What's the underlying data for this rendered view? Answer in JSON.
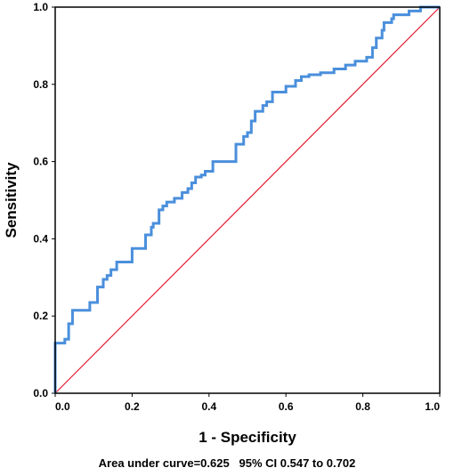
{
  "chart_data": {
    "type": "line",
    "xlabel": "1 - Specificity",
    "ylabel": "Sensitivity",
    "xlim": [
      0.0,
      1.0
    ],
    "ylim": [
      0.0,
      1.0
    ],
    "x_ticks": [
      "0.0",
      "0.2",
      "0.4",
      "0.6",
      "0.8",
      "1.0"
    ],
    "y_ticks": [
      "0.0",
      "0.2",
      "0.4",
      "0.6",
      "0.8",
      "1.0"
    ],
    "grid": false,
    "series": [
      {
        "style": "step",
        "color": "#4a8fdc",
        "x": [
          0.0,
          0.0,
          0.025,
          0.025,
          0.035,
          0.035,
          0.045,
          0.045,
          0.09,
          0.09,
          0.11,
          0.11,
          0.125,
          0.125,
          0.135,
          0.135,
          0.145,
          0.145,
          0.16,
          0.16,
          0.2,
          0.2,
          0.235,
          0.235,
          0.25,
          0.25,
          0.255,
          0.255,
          0.27,
          0.27,
          0.28,
          0.28,
          0.29,
          0.29,
          0.31,
          0.31,
          0.33,
          0.33,
          0.345,
          0.345,
          0.355,
          0.355,
          0.365,
          0.365,
          0.38,
          0.38,
          0.39,
          0.39,
          0.41,
          0.41,
          0.47,
          0.47,
          0.49,
          0.49,
          0.5,
          0.5,
          0.51,
          0.51,
          0.52,
          0.52,
          0.54,
          0.54,
          0.55,
          0.55,
          0.565,
          0.565,
          0.6,
          0.6,
          0.625,
          0.625,
          0.64,
          0.64,
          0.66,
          0.66,
          0.69,
          0.69,
          0.725,
          0.725,
          0.755,
          0.755,
          0.78,
          0.78,
          0.81,
          0.81,
          0.825,
          0.825,
          0.835,
          0.835,
          0.85,
          0.85,
          0.855,
          0.855,
          0.875,
          0.875,
          0.88,
          0.88,
          0.92,
          0.92,
          0.95,
          0.95,
          1.0
        ],
        "y": [
          0.0,
          0.13,
          0.13,
          0.14,
          0.14,
          0.18,
          0.18,
          0.215,
          0.215,
          0.235,
          0.235,
          0.275,
          0.275,
          0.295,
          0.295,
          0.305,
          0.305,
          0.32,
          0.32,
          0.34,
          0.34,
          0.375,
          0.375,
          0.41,
          0.41,
          0.43,
          0.43,
          0.44,
          0.44,
          0.475,
          0.475,
          0.485,
          0.485,
          0.495,
          0.495,
          0.505,
          0.505,
          0.52,
          0.52,
          0.53,
          0.53,
          0.545,
          0.545,
          0.56,
          0.56,
          0.565,
          0.565,
          0.575,
          0.575,
          0.6,
          0.6,
          0.645,
          0.645,
          0.665,
          0.665,
          0.675,
          0.675,
          0.705,
          0.705,
          0.73,
          0.73,
          0.745,
          0.745,
          0.755,
          0.755,
          0.78,
          0.78,
          0.795,
          0.795,
          0.81,
          0.81,
          0.82,
          0.82,
          0.825,
          0.825,
          0.83,
          0.83,
          0.84,
          0.84,
          0.85,
          0.85,
          0.86,
          0.86,
          0.87,
          0.87,
          0.895,
          0.895,
          0.92,
          0.92,
          0.94,
          0.94,
          0.96,
          0.96,
          0.97,
          0.97,
          0.98,
          0.98,
          0.99,
          0.99,
          1.0,
          1.0
        ]
      },
      {
        "style": "diagonal",
        "color": "#e31a2f",
        "x": [
          0.0,
          1.0
        ],
        "y": [
          0.0,
          1.0
        ]
      }
    ],
    "annotation": "Area under curve=0.625   95% CI 0.547 to 0.702"
  }
}
